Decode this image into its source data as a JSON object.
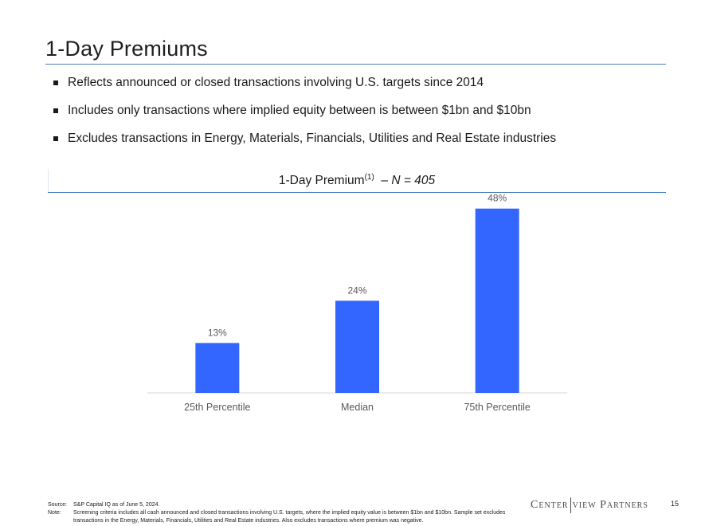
{
  "slide": {
    "title": "1-Day Premiums",
    "bullets": [
      "Reflects announced or closed transactions involving U.S. targets since 2014",
      "Includes only transactions where implied equity between is between $1bn and $10bn",
      "Excludes transactions in Energy, Materials, Financials, Utilities and Real Estate industries"
    ],
    "chart_heading": {
      "main": "1-Day Premium",
      "footnote_ref": "(1)",
      "dash": "–",
      "n_label": "N = 405"
    },
    "footer": {
      "source_label": "Source:",
      "source_text": "S&P Capital IQ as of June 5, 2024.",
      "note_label": "Note:",
      "note_text": "Screening criteria includes all cash announced and closed transactions involving U.S. targets, where the implied equity value is between $1bn and $10bn. Sample set excludes transactions in the Energy, Materials, Financials, Utilities and Real Estate industries. Also excludes transactions where premium was negative."
    },
    "logo": {
      "part1": "Center",
      "part2": "view Partners"
    },
    "page_number": "15"
  },
  "colors": {
    "bar": "#3366ff",
    "rule": "#4a7fc1",
    "axis": "#d9d9d9",
    "label": "#595959"
  },
  "chart_data": {
    "type": "bar",
    "title": "1-Day Premium(1) – N = 405",
    "categories": [
      "25th Percentile",
      "Median",
      "75th Percentile"
    ],
    "values": [
      13,
      24,
      48
    ],
    "value_labels": [
      "13%",
      "24%",
      "48%"
    ],
    "ylim": [
      0,
      55
    ],
    "unit": "%",
    "xlabel": "",
    "ylabel": "",
    "grid": false,
    "legend": "none"
  }
}
